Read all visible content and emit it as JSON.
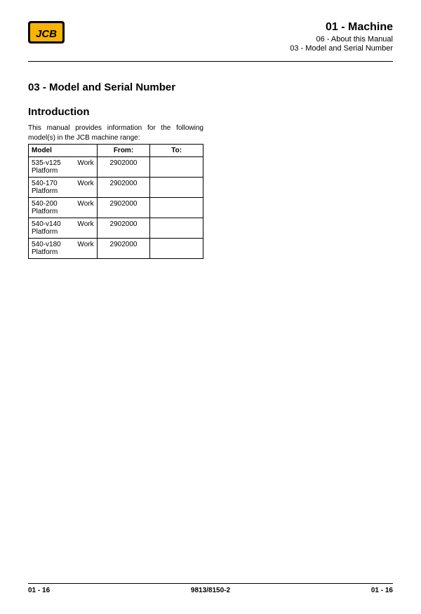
{
  "header": {
    "title": "01 - Machine",
    "sub1": "06 - About this Manual",
    "sub2": "03 - Model and Serial Number"
  },
  "section_title": "03 - Model and Serial Number",
  "intro_title": "Introduction",
  "intro_text": "This manual provides information for the following model(s) in the JCB machine range:",
  "table": {
    "headers": {
      "model": "Model",
      "from": "From:",
      "to": "To:"
    },
    "rows": [
      {
        "model": "535-v125 Work Platform",
        "from": "2902000",
        "to": ""
      },
      {
        "model": "540-170 Work Platform",
        "from": "2902000",
        "to": ""
      },
      {
        "model": "540-200 Work Platform",
        "from": "2902000",
        "to": ""
      },
      {
        "model": "540-v140 Work Platform",
        "from": "2902000",
        "to": ""
      },
      {
        "model": "540-v180 Work Platform",
        "from": "2902000",
        "to": ""
      }
    ]
  },
  "footer": {
    "left": "01 - 16",
    "center": "9813/8150-2",
    "right": "01 - 16"
  }
}
